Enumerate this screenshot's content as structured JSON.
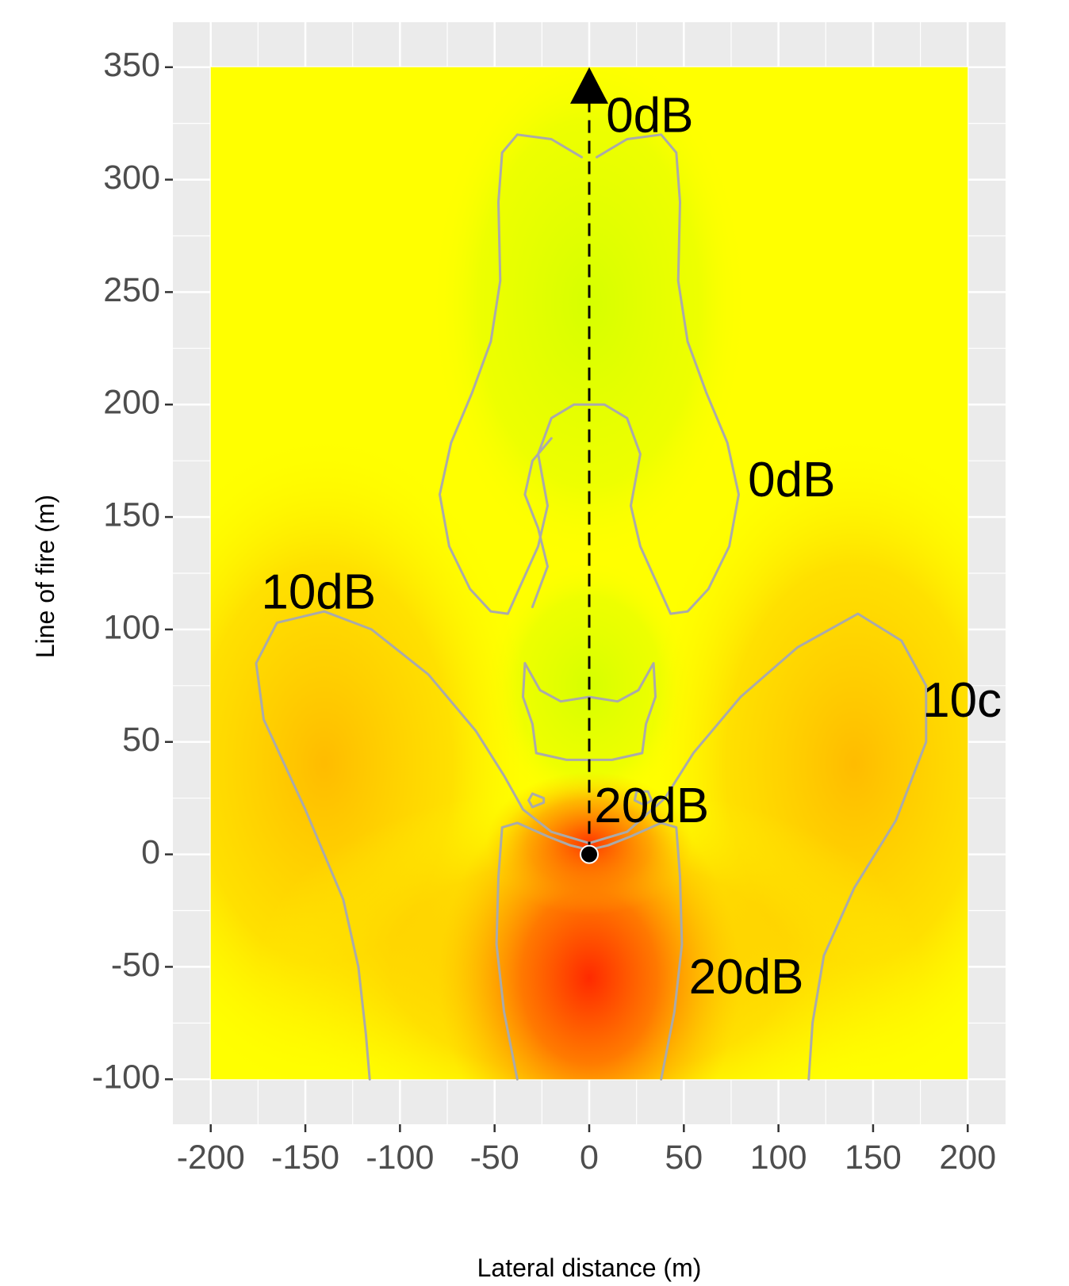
{
  "chart_data": {
    "type": "heatmap",
    "xlabel": "Lateral distance (m)",
    "ylabel": "Line of fire (m)",
    "xlim": [
      -220,
      220
    ],
    "ylim": [
      -120,
      370
    ],
    "x_ticks": [
      -200,
      -150,
      -100,
      -50,
      0,
      50,
      100,
      150,
      200
    ],
    "y_ticks": [
      350,
      300,
      250,
      200,
      150,
      100,
      50,
      0,
      -50,
      -100
    ],
    "x_tick_labels": [
      "-200",
      "-150",
      "-100",
      "-50",
      "0",
      "50",
      "100",
      "150",
      "200"
    ],
    "y_tick_labels": [
      "350",
      "300",
      "250",
      "200",
      "150",
      "100",
      "50",
      "0",
      "-50",
      "-100"
    ],
    "grid": true,
    "heatmap_extent": {
      "x": [
        -200,
        200
      ],
      "y": [
        -100,
        350
      ]
    },
    "colors": {
      "panel_background": "#ebebeb",
      "grid": "#ffffff",
      "low": "#d4ff00",
      "mid": "#ffff00",
      "high": "#ffb800",
      "peak": "#ff2a00",
      "contour": "#aaaaaa"
    },
    "hotspots": [
      {
        "x": 0,
        "y": -55,
        "level": "peak"
      },
      {
        "x": 0,
        "y": 5,
        "level": "peak"
      },
      {
        "x": -140,
        "y": 40,
        "level": "high"
      },
      {
        "x": 140,
        "y": 40,
        "level": "high"
      }
    ],
    "source": {
      "x": 0,
      "y": 0
    },
    "line_of_fire_arrow": {
      "from": {
        "x": 0,
        "y": 0
      },
      "to": {
        "x": 0,
        "y": 350
      }
    },
    "contour_labels": [
      {
        "text": "0dB",
        "x": 32,
        "y": 327
      },
      {
        "text": "0dB",
        "x": 107,
        "y": 165
      },
      {
        "text": "10dB",
        "x": -143,
        "y": 115
      },
      {
        "text": "10c",
        "x": 197,
        "y": 67
      },
      {
        "text": "20dB",
        "x": 33,
        "y": 20
      },
      {
        "text": "20dB",
        "x": 83,
        "y": -56
      }
    ],
    "contours": [
      {
        "level": "0dB",
        "points": [
          [
            -4,
            310
          ],
          [
            -20,
            318
          ],
          [
            -38,
            320
          ],
          [
            -46,
            312
          ],
          [
            -48,
            290
          ],
          [
            -47,
            255
          ],
          [
            -52,
            228
          ],
          [
            -62,
            205
          ],
          [
            -73,
            183
          ],
          [
            -79,
            160
          ],
          [
            -74,
            137
          ],
          [
            -63,
            118
          ],
          [
            -52,
            108
          ],
          [
            -43,
            107
          ],
          [
            -35,
            122
          ],
          [
            -27,
            137
          ],
          [
            -22,
            155
          ],
          [
            -27,
            178
          ],
          [
            -20,
            194
          ],
          [
            -8,
            200
          ],
          [
            0,
            200
          ],
          [
            8,
            200
          ],
          [
            20,
            194
          ],
          [
            27,
            178
          ],
          [
            22,
            155
          ],
          [
            27,
            137
          ],
          [
            35,
            122
          ],
          [
            43,
            107
          ],
          [
            52,
            108
          ],
          [
            63,
            118
          ],
          [
            74,
            137
          ],
          [
            79,
            160
          ],
          [
            73,
            183
          ],
          [
            62,
            205
          ],
          [
            52,
            228
          ],
          [
            47,
            255
          ],
          [
            48,
            290
          ],
          [
            46,
            312
          ],
          [
            38,
            320
          ],
          [
            20,
            318
          ],
          [
            4,
            310
          ]
        ]
      },
      {
        "level": "0dB",
        "points": [
          [
            -20,
            185
          ],
          [
            -30,
            175
          ],
          [
            -34,
            160
          ],
          [
            -27,
            145
          ],
          [
            -22,
            128
          ],
          [
            -30,
            110
          ]
        ]
      },
      {
        "level": "0dB",
        "points": [
          [
            -34,
            85
          ],
          [
            -35,
            70
          ],
          [
            -30,
            58
          ],
          [
            -28,
            45
          ],
          [
            -12,
            42
          ],
          [
            0,
            42
          ],
          [
            12,
            42
          ],
          [
            28,
            45
          ],
          [
            30,
            58
          ],
          [
            35,
            70
          ],
          [
            34,
            85
          ],
          [
            26,
            73
          ],
          [
            15,
            68
          ],
          [
            0,
            70
          ],
          [
            -15,
            68
          ],
          [
            -26,
            73
          ],
          [
            -34,
            85
          ]
        ]
      },
      {
        "level": "10dB",
        "points": [
          [
            -116,
            -100
          ],
          [
            -118,
            -80
          ],
          [
            -122,
            -50
          ],
          [
            -130,
            -20
          ],
          [
            -150,
            20
          ],
          [
            -172,
            60
          ],
          [
            -176,
            85
          ],
          [
            -165,
            103
          ],
          [
            -140,
            108
          ],
          [
            -115,
            100
          ],
          [
            -85,
            80
          ],
          [
            -60,
            55
          ],
          [
            -45,
            35
          ],
          [
            -35,
            20
          ],
          [
            -20,
            10
          ],
          [
            0,
            5
          ],
          [
            20,
            10
          ],
          [
            40,
            25
          ],
          [
            55,
            45
          ],
          [
            80,
            70
          ],
          [
            110,
            92
          ],
          [
            142,
            107
          ],
          [
            165,
            95
          ],
          [
            178,
            75
          ],
          [
            178,
            50
          ],
          [
            162,
            15
          ],
          [
            140,
            -15
          ],
          [
            124,
            -45
          ],
          [
            118,
            -75
          ],
          [
            116,
            -100
          ]
        ]
      },
      {
        "level": "20dB",
        "points": [
          [
            -38,
            -100
          ],
          [
            -45,
            -70
          ],
          [
            -49,
            -40
          ],
          [
            -48,
            -10
          ],
          [
            -46,
            12
          ],
          [
            -38,
            14
          ],
          [
            -22,
            8
          ],
          [
            -10,
            4
          ],
          [
            0,
            2
          ],
          [
            10,
            4
          ],
          [
            22,
            8
          ],
          [
            38,
            14
          ],
          [
            46,
            12
          ],
          [
            48,
            -10
          ],
          [
            49,
            -40
          ],
          [
            45,
            -70
          ],
          [
            38,
            -100
          ]
        ]
      },
      {
        "level": "20dB",
        "points": [
          [
            -30,
            27
          ],
          [
            -24,
            25
          ],
          [
            -24,
            23
          ],
          [
            -30,
            21
          ],
          [
            -32,
            24
          ],
          [
            -30,
            27
          ]
        ]
      },
      {
        "level": "20dB",
        "points": [
          [
            25,
            28
          ],
          [
            31,
            28
          ],
          [
            33,
            24
          ],
          [
            29,
            22
          ],
          [
            24,
            24
          ],
          [
            25,
            28
          ]
        ]
      }
    ]
  }
}
